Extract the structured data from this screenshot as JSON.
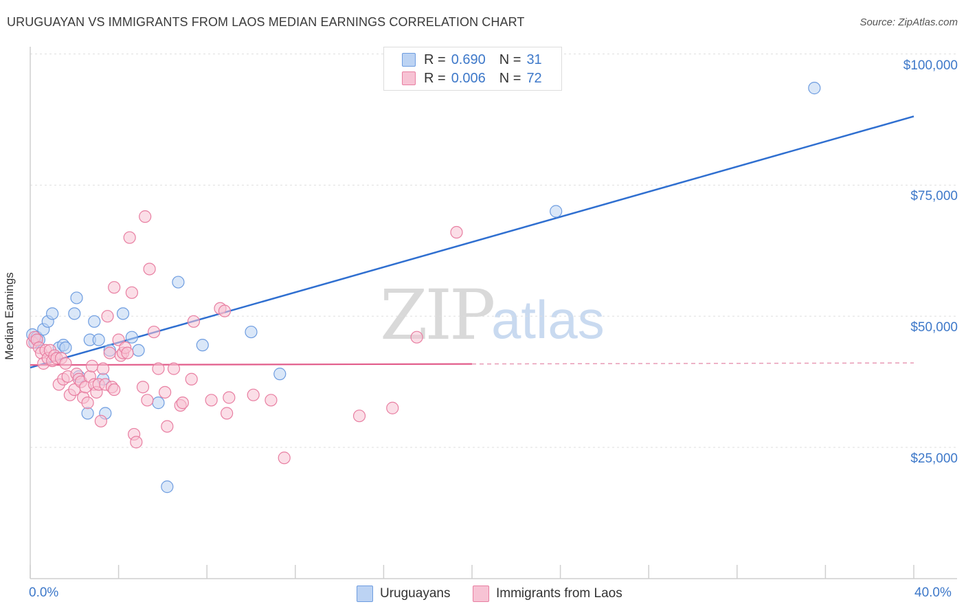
{
  "title": "URUGUAYAN VS IMMIGRANTS FROM LAOS MEDIAN EARNINGS CORRELATION CHART",
  "source": "Source: ZipAtlas.com",
  "watermark": {
    "zip": "ZIP",
    "atlas": "atlas"
  },
  "legend": {
    "r_label": "R =",
    "n_label": "N =",
    "rows": [
      {
        "r": "0.690",
        "n": "31"
      },
      {
        "r": "0.006",
        "n": "72"
      }
    ]
  },
  "chart_data": {
    "type": "scatter",
    "title": "URUGUAYAN VS IMMIGRANTS FROM LAOS MEDIAN EARNINGS CORRELATION CHART",
    "xlabel": "",
    "ylabel": "Median Earnings",
    "xlim": [
      0,
      40
    ],
    "ylim": [
      0,
      104000
    ],
    "x_tick_labels": [
      "0.0%",
      "40.0%"
    ],
    "y_ticks": [
      25000,
      50000,
      75000,
      100000
    ],
    "y_tick_labels": [
      "$25,000",
      "$50,000",
      "$75,000",
      "$100,000"
    ],
    "grid": true,
    "legend_position": "top-center",
    "series": [
      {
        "name": "Uruguayans",
        "color": "#6d9ce0",
        "fill": "#bcd3f3",
        "r": 0.69,
        "n": 31,
        "trend": {
          "x": [
            0,
            40
          ],
          "y": [
            40200,
            88100
          ],
          "dashed_from": null
        },
        "points": [
          [
            0.1,
            46500
          ],
          [
            0.2,
            45000
          ],
          [
            0.3,
            46000
          ],
          [
            0.4,
            45500
          ],
          [
            0.6,
            47500
          ],
          [
            0.8,
            49000
          ],
          [
            1.0,
            50500
          ],
          [
            1.3,
            44000
          ],
          [
            1.5,
            44500
          ],
          [
            1.6,
            44000
          ],
          [
            2.0,
            50500
          ],
          [
            2.1,
            53500
          ],
          [
            2.2,
            38500
          ],
          [
            2.6,
            31500
          ],
          [
            2.7,
            45500
          ],
          [
            2.9,
            49000
          ],
          [
            3.1,
            45500
          ],
          [
            3.3,
            38000
          ],
          [
            3.4,
            31500
          ],
          [
            3.6,
            43500
          ],
          [
            4.2,
            50500
          ],
          [
            4.6,
            46000
          ],
          [
            4.9,
            43500
          ],
          [
            5.8,
            33500
          ],
          [
            6.2,
            17500
          ],
          [
            6.7,
            56500
          ],
          [
            7.8,
            44500
          ],
          [
            10.0,
            47000
          ],
          [
            11.3,
            39000
          ],
          [
            23.8,
            70000
          ],
          [
            35.5,
            93500
          ]
        ]
      },
      {
        "name": "Immigrants from Laos",
        "color": "#e87ea1",
        "fill": "#f7c3d4",
        "r": 0.006,
        "n": 72,
        "trend": {
          "x": [
            0,
            40
          ],
          "y": [
            40700,
            41100
          ],
          "dashed_from": 20
        },
        "points": [
          [
            0.1,
            45000
          ],
          [
            0.2,
            46000
          ],
          [
            0.3,
            45500
          ],
          [
            0.4,
            44000
          ],
          [
            0.5,
            43000
          ],
          [
            0.6,
            41000
          ],
          [
            0.7,
            43500
          ],
          [
            0.8,
            42000
          ],
          [
            0.9,
            43500
          ],
          [
            1.0,
            41500
          ],
          [
            1.1,
            42500
          ],
          [
            1.2,
            42000
          ],
          [
            1.3,
            37000
          ],
          [
            1.4,
            42000
          ],
          [
            1.5,
            38000
          ],
          [
            1.6,
            41000
          ],
          [
            1.7,
            38500
          ],
          [
            1.8,
            35000
          ],
          [
            2.0,
            36000
          ],
          [
            2.1,
            39000
          ],
          [
            2.2,
            38000
          ],
          [
            2.3,
            37500
          ],
          [
            2.4,
            34500
          ],
          [
            2.5,
            36500
          ],
          [
            2.6,
            33500
          ],
          [
            2.7,
            38500
          ],
          [
            2.8,
            40500
          ],
          [
            2.9,
            37000
          ],
          [
            3.0,
            35500
          ],
          [
            3.1,
            37000
          ],
          [
            3.2,
            30000
          ],
          [
            3.3,
            40000
          ],
          [
            3.4,
            37000
          ],
          [
            3.5,
            50000
          ],
          [
            3.6,
            43000
          ],
          [
            3.7,
            36500
          ],
          [
            3.8,
            36000
          ],
          [
            3.8,
            55500
          ],
          [
            4.0,
            45500
          ],
          [
            4.1,
            42500
          ],
          [
            4.2,
            43000
          ],
          [
            4.3,
            44000
          ],
          [
            4.5,
            65000
          ],
          [
            4.6,
            54500
          ],
          [
            4.7,
            27500
          ],
          [
            4.8,
            26000
          ],
          [
            5.1,
            36500
          ],
          [
            5.2,
            69000
          ],
          [
            5.3,
            34000
          ],
          [
            5.4,
            59000
          ],
          [
            5.6,
            47000
          ],
          [
            5.8,
            40000
          ],
          [
            6.1,
            35500
          ],
          [
            6.2,
            29000
          ],
          [
            6.5,
            40000
          ],
          [
            6.8,
            33000
          ],
          [
            6.9,
            33500
          ],
          [
            7.3,
            38000
          ],
          [
            7.4,
            49000
          ],
          [
            8.2,
            34000
          ],
          [
            8.6,
            51500
          ],
          [
            8.8,
            51000
          ],
          [
            8.9,
            31500
          ],
          [
            9.0,
            34500
          ],
          [
            10.1,
            35000
          ],
          [
            10.9,
            34000
          ],
          [
            11.5,
            23000
          ],
          [
            14.9,
            31000
          ],
          [
            16.4,
            32500
          ],
          [
            17.5,
            46000
          ],
          [
            19.3,
            66000
          ],
          [
            4.4,
            43000
          ]
        ]
      }
    ]
  }
}
